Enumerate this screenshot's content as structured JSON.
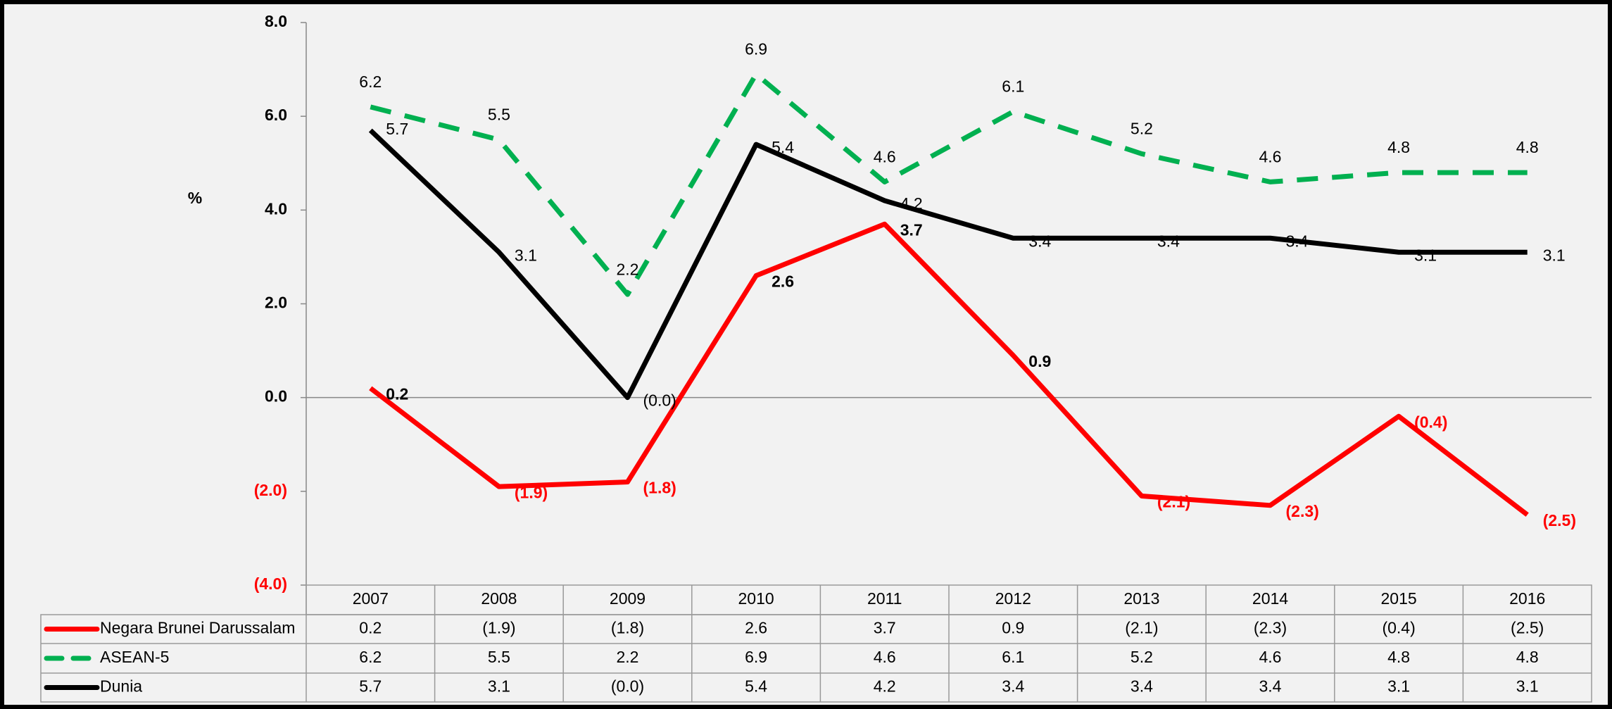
{
  "chart_data": {
    "type": "line",
    "y_axis_label": "%",
    "categories": [
      "2007",
      "2008",
      "2009",
      "2010",
      "2011",
      "2012",
      "2013",
      "2014",
      "2015",
      "2016"
    ],
    "series": [
      {
        "name": "Negara Brunei Darussalam",
        "color": "#ff0000",
        "dashed": false,
        "values": [
          0.2,
          -1.9,
          -1.8,
          2.6,
          3.7,
          0.9,
          -2.1,
          -2.3,
          -0.4,
          -2.5
        ],
        "value_labels": [
          "0.2",
          "(1.9)",
          "(1.8)",
          "2.6",
          "3.7",
          "0.9",
          "(2.1)",
          "(2.3)",
          "(0.4)",
          "(2.5)"
        ]
      },
      {
        "name": "ASEAN-5",
        "color": "#00b050",
        "dashed": true,
        "values": [
          6.2,
          5.5,
          2.2,
          6.9,
          4.6,
          6.1,
          5.2,
          4.6,
          4.8,
          4.8
        ],
        "value_labels": [
          "6.2",
          "5.5",
          "2.2",
          "6.9",
          "4.6",
          "6.1",
          "5.2",
          "4.6",
          "4.8",
          "4.8"
        ]
      },
      {
        "name": "Dunia",
        "color": "#000000",
        "dashed": false,
        "values": [
          5.7,
          3.1,
          0,
          5.4,
          4.2,
          3.4,
          3.4,
          3.4,
          3.1,
          3.1
        ],
        "value_labels": [
          "5.7",
          "3.1",
          "(0.0)",
          "5.4",
          "4.2",
          "3.4",
          "3.4",
          "3.4",
          "3.1",
          "3.1"
        ]
      }
    ],
    "ylim": [
      -4,
      8
    ],
    "yticks": [
      {
        "value": -4,
        "label": "(4.0)"
      },
      {
        "value": -2,
        "label": "(2.0)"
      },
      {
        "value": 0,
        "label": "0.0"
      },
      {
        "value": 2,
        "label": "2.0"
      },
      {
        "value": 4,
        "label": "4.0"
      },
      {
        "value": 6,
        "label": "6.0"
      },
      {
        "value": 8,
        "label": "8.0"
      }
    ],
    "grid": false,
    "data_table": true
  }
}
